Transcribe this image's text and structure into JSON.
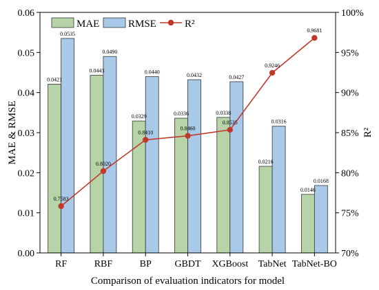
{
  "chart_data": {
    "type": "bar",
    "title": "",
    "xlabel": "Comparison of evaluation indicators for model",
    "ylabel": "MAE & RMSE",
    "y2label": "R²",
    "categories": [
      "RF",
      "RBF",
      "BP",
      "GBDT",
      "XGBoost",
      "TabNet",
      "TabNet-BO"
    ],
    "ylim": [
      0,
      0.06
    ],
    "y2lim": [
      70,
      100
    ],
    "yticks": [
      "0.00",
      "0.01",
      "0.02",
      "0.03",
      "0.04",
      "0.05",
      "0.06"
    ],
    "y2ticks": [
      "70%",
      "75%",
      "80%",
      "85%",
      "90%",
      "95%",
      "100%"
    ],
    "series": [
      {
        "name": "MAE",
        "type": "bar",
        "axis": "left",
        "color": "#b7d4a8",
        "values": [
          0.0421,
          0.0443,
          0.0329,
          0.0336,
          0.0338,
          0.0216,
          0.0146
        ],
        "labels": [
          "0.0421",
          "0.0443",
          "0.0329",
          "0.0336",
          "0.0338",
          "0.0216",
          "0.0146"
        ]
      },
      {
        "name": "RMSE",
        "type": "bar",
        "axis": "left",
        "color": "#a9c9e8",
        "values": [
          0.0535,
          0.049,
          0.044,
          0.0432,
          0.0427,
          0.0316,
          0.0168
        ],
        "labels": [
          "0.0535",
          "0.0490",
          "0.0440",
          "0.0432",
          "0.0427",
          "0.0316",
          "0.0168"
        ]
      },
      {
        "name": "R²",
        "type": "line",
        "axis": "right",
        "color": "#c0392b",
        "values": [
          75.83,
          80.2,
          84.1,
          84.6,
          85.35,
          92.46,
          96.81
        ],
        "labels": [
          "0.7583",
          "0.8020",
          "0.8410",
          "0.8460",
          "0.8535",
          "0.9246",
          "0.9681"
        ]
      }
    ],
    "legend": "top",
    "grid": false
  }
}
